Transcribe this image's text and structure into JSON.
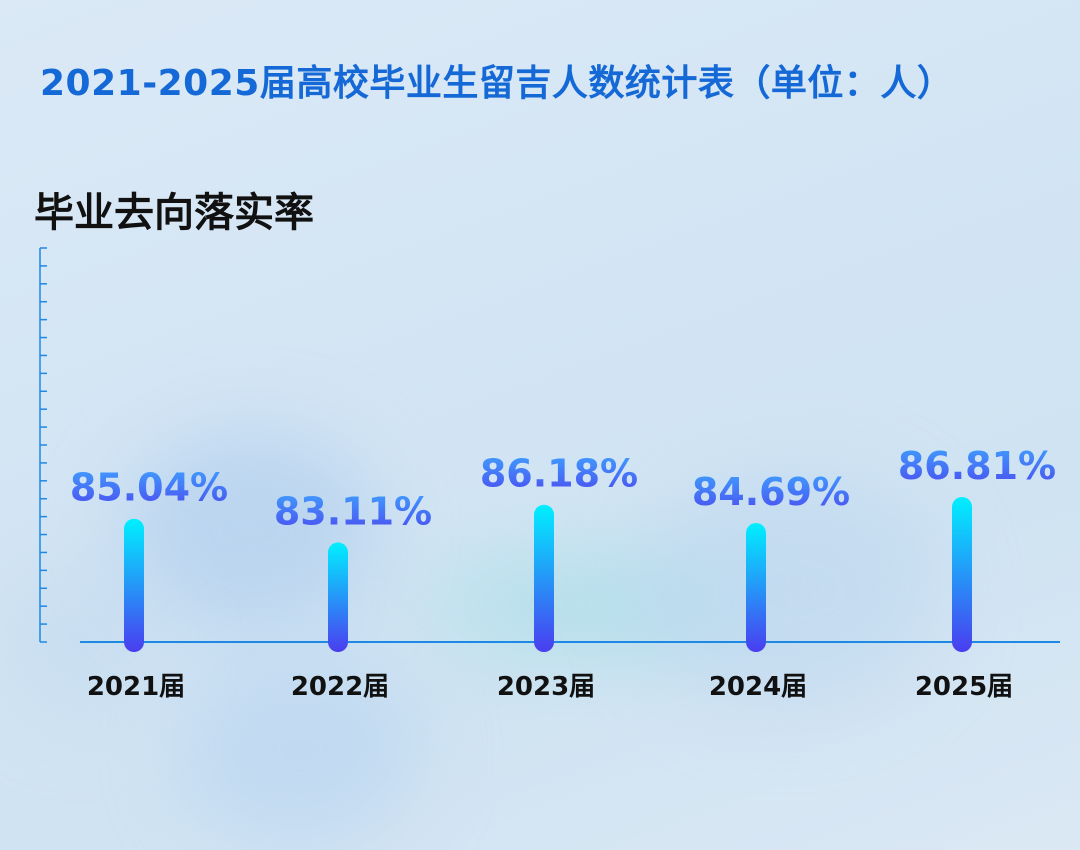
{
  "header": {
    "title": "2021-2025届高校毕业生留吉人数统计表（单位：人）"
  },
  "chart_data": {
    "type": "bar",
    "title": "毕业去向落实率",
    "categories": [
      "2021届",
      "2022届",
      "2023届",
      "2024届",
      "2025届"
    ],
    "values": [
      85.04,
      83.11,
      86.18,
      84.69,
      86.81
    ],
    "value_labels": [
      "85.04%",
      "83.11%",
      "86.18%",
      "84.69%",
      "86.81%"
    ],
    "unit": "%",
    "ylim": [
      75,
      90
    ],
    "grid": false,
    "colors": {
      "bar_top": "#00f0ff",
      "bar_bottom": "#4a3df0",
      "label_top": "#3fa2ff",
      "label_bottom": "#4b4bf0",
      "axis": "#1e88e5"
    }
  }
}
